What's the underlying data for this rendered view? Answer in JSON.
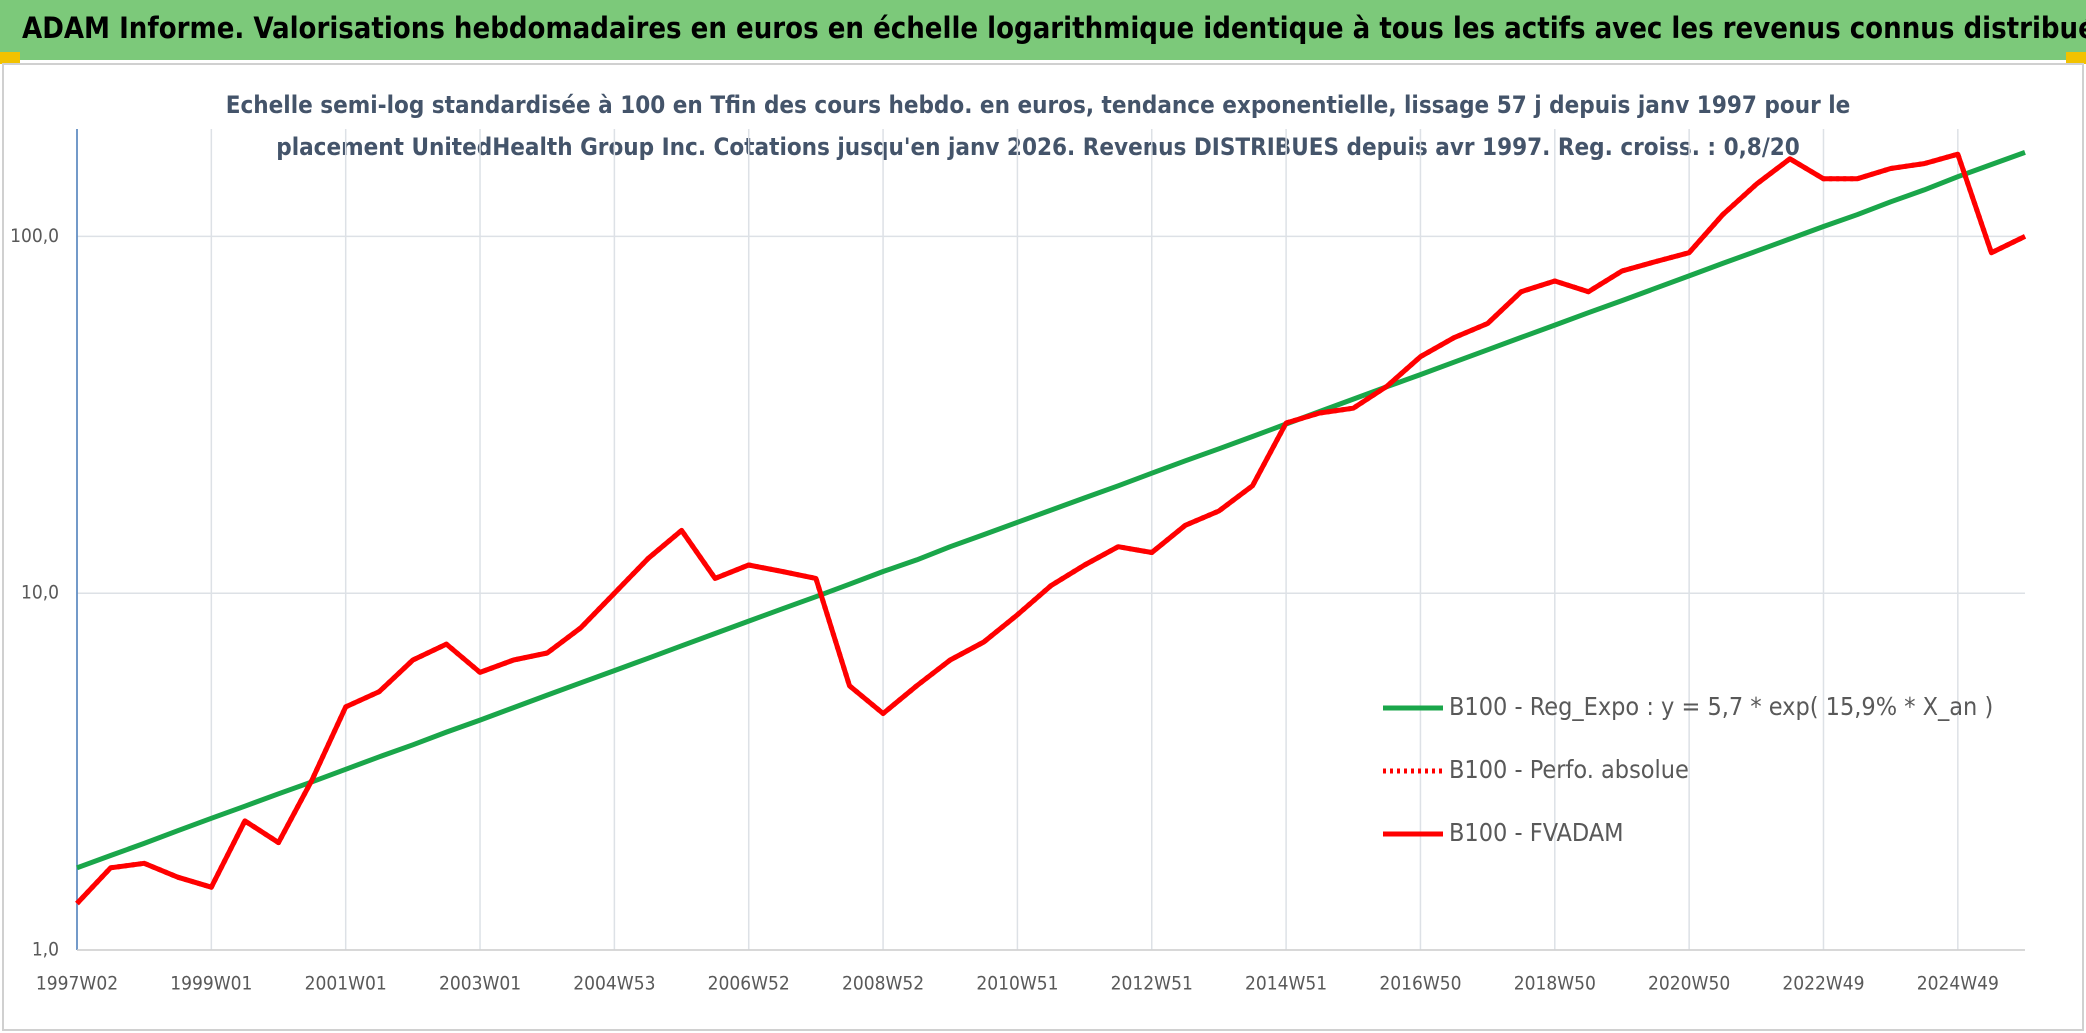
{
  "chart_data": {
    "type": "line",
    "title": "ADAM Informe. Valorisations hebdomadaires en euros en échelle logarithmique identique à tous les actifs avec les revenus connus distribués",
    "subtitle": [
      "Echelle semi-log standardisée à 100 en Tfin des cours hebdo. en euros, tendance exponentielle, lissage 57 j depuis janv 1997 pour le",
      "placement UnitedHealth Group Inc. Cotations jusqu'en janv 2026. Revenus DISTRIBUES depuis avr 1997. Reg. croiss. : 0,8/20"
    ],
    "x": [
      "1997W02",
      null,
      null,
      null,
      "1999W01",
      null,
      null,
      null,
      "2001W01",
      null,
      null,
      null,
      "2003W01",
      null,
      null,
      null,
      "2004W53",
      null,
      null,
      null,
      "2006W52",
      null,
      null,
      null,
      "2008W52",
      null,
      null,
      null,
      "2010W51",
      null,
      null,
      null,
      "2012W51",
      null,
      null,
      null,
      "2014W51",
      null,
      null,
      null,
      "2016W50",
      null,
      null,
      null,
      "2018W50",
      null,
      null,
      null,
      "2020W50",
      null,
      null,
      null,
      "2022W49",
      null,
      null,
      null,
      "2024W49",
      null,
      null
    ],
    "log_scale": true,
    "ylim": [
      1,
      200
    ],
    "yticks": [
      {
        "value": 1,
        "label": "1,0"
      },
      {
        "value": 10,
        "label": "10,0"
      },
      {
        "value": 100,
        "label": "100,0"
      }
    ],
    "grid": true,
    "legend": "lower right",
    "series": [
      {
        "name": "B100 - Reg_Expo : y = 5,7 * exp( 15,9% *  X_an )",
        "color": "#1aa64a",
        "style": "solid",
        "values": [
          1.7,
          1.84,
          1.99,
          2.16,
          2.34,
          2.53,
          2.74,
          2.96,
          3.21,
          3.48,
          3.76,
          4.08,
          4.41,
          4.78,
          5.18,
          5.61,
          6.07,
          6.57,
          7.12,
          7.71,
          8.35,
          9.04,
          9.78,
          10.6,
          11.5,
          12.4,
          13.5,
          14.6,
          15.8,
          17.1,
          18.5,
          20.0,
          21.7,
          23.5,
          25.4,
          27.5,
          29.8,
          32.3,
          35.0,
          37.9,
          41.0,
          44.4,
          48.1,
          52.1,
          56.4,
          61.1,
          66.1,
          71.6,
          77.5,
          84.0,
          90.9,
          98.4,
          106.6,
          115,
          125,
          135,
          147,
          159,
          172
        ]
      },
      {
        "name": "B100 - Perfo. absolue",
        "color": "#ff0000",
        "style": "dotted",
        "values": [
          1.35,
          1.7,
          1.75,
          1.6,
          1.5,
          2.3,
          2.0,
          3.0,
          4.8,
          5.3,
          6.5,
          7.2,
          6.0,
          6.5,
          6.8,
          8.0,
          10.0,
          12.5,
          15.0,
          11.0,
          12.0,
          11.5,
          11.0,
          5.5,
          4.6,
          5.5,
          6.5,
          7.3,
          8.7,
          10.5,
          12.0,
          13.5,
          13.0,
          15.5,
          17.0,
          20.0,
          30.0,
          32.0,
          33.0,
          38.0,
          46.0,
          52.0,
          57.0,
          70.0,
          75.0,
          70.0,
          80.0,
          85.0,
          90.0,
          115,
          140,
          165,
          145,
          145,
          155,
          160,
          170,
          90,
          100
        ]
      },
      {
        "name": "B100 - FVADAM",
        "color": "#ff0000",
        "style": "solid",
        "values": [
          1.35,
          1.7,
          1.75,
          1.6,
          1.5,
          2.3,
          2.0,
          3.0,
          4.8,
          5.3,
          6.5,
          7.2,
          6.0,
          6.5,
          6.8,
          8.0,
          10.0,
          12.5,
          15.0,
          11.0,
          12.0,
          11.5,
          11.0,
          5.5,
          4.6,
          5.5,
          6.5,
          7.3,
          8.7,
          10.5,
          12.0,
          13.5,
          13.0,
          15.5,
          17.0,
          20.0,
          30.0,
          32.0,
          33.0,
          38.0,
          46.0,
          52.0,
          57.0,
          70.0,
          75.0,
          70.0,
          80.0,
          85.0,
          90.0,
          115,
          140,
          165,
          145,
          145,
          155,
          160,
          170,
          90,
          100
        ]
      }
    ]
  }
}
